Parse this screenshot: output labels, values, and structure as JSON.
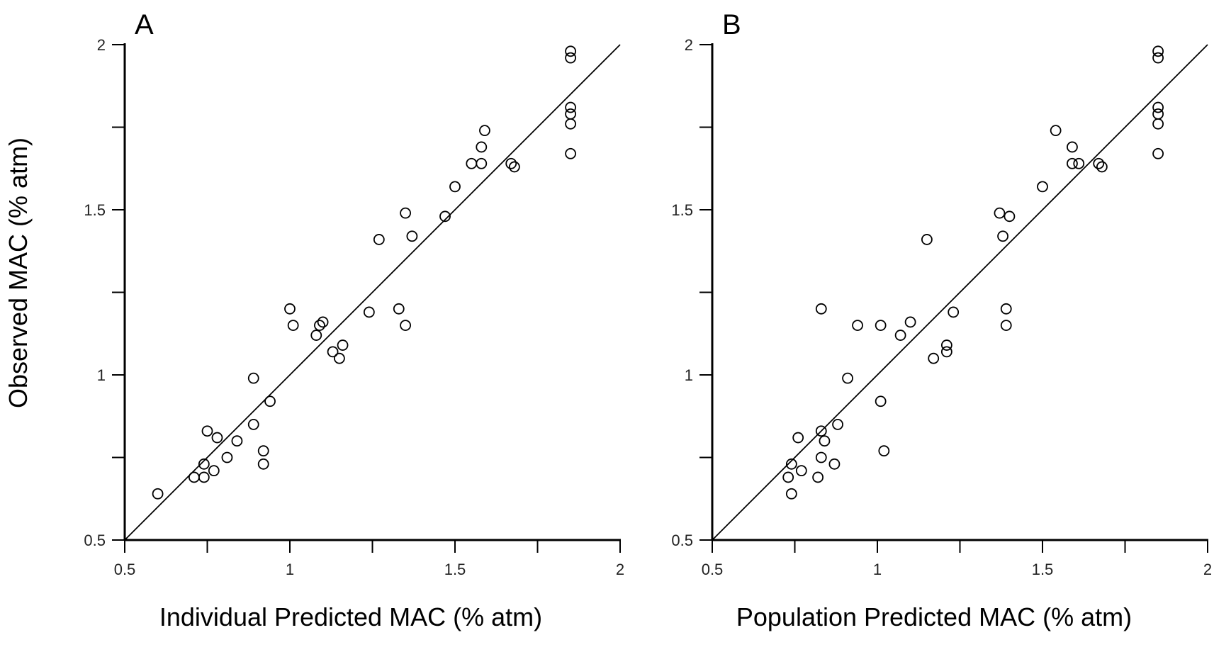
{
  "figure": {
    "ylabel": "Observed MAC (% atm)"
  },
  "chart_data": [
    {
      "type": "scatter",
      "panel_label": "A",
      "title": "",
      "xlabel": "Individual Predicted MAC (% atm)",
      "ylabel": "Observed MAC (% atm)",
      "xlim": [
        0.5,
        2
      ],
      "ylim": [
        0.5,
        2
      ],
      "major_ticks": [
        0.5,
        1,
        1.5,
        2
      ],
      "minor_ticks": [
        0.75,
        1.25,
        1.75
      ],
      "tick_labels": [
        "0.5",
        "1",
        "1.5",
        "2"
      ],
      "reference_line": "identity y = x",
      "grid": false,
      "points": [
        {
          "x": 0.6,
          "y": 0.64
        },
        {
          "x": 0.71,
          "y": 0.69
        },
        {
          "x": 0.74,
          "y": 0.69
        },
        {
          "x": 0.74,
          "y": 0.73
        },
        {
          "x": 0.75,
          "y": 0.83
        },
        {
          "x": 0.77,
          "y": 0.71
        },
        {
          "x": 0.78,
          "y": 0.81
        },
        {
          "x": 0.81,
          "y": 0.75
        },
        {
          "x": 0.84,
          "y": 0.8
        },
        {
          "x": 0.89,
          "y": 0.85
        },
        {
          "x": 0.89,
          "y": 0.99
        },
        {
          "x": 0.92,
          "y": 0.77
        },
        {
          "x": 0.92,
          "y": 0.73
        },
        {
          "x": 0.94,
          "y": 0.92
        },
        {
          "x": 1.0,
          "y": 1.2
        },
        {
          "x": 1.01,
          "y": 1.15
        },
        {
          "x": 1.08,
          "y": 1.12
        },
        {
          "x": 1.09,
          "y": 1.15
        },
        {
          "x": 1.1,
          "y": 1.16
        },
        {
          "x": 1.13,
          "y": 1.07
        },
        {
          "x": 1.15,
          "y": 1.05
        },
        {
          "x": 1.16,
          "y": 1.09
        },
        {
          "x": 1.24,
          "y": 1.19
        },
        {
          "x": 1.27,
          "y": 1.41
        },
        {
          "x": 1.33,
          "y": 1.2
        },
        {
          "x": 1.35,
          "y": 1.15
        },
        {
          "x": 1.35,
          "y": 1.49
        },
        {
          "x": 1.37,
          "y": 1.42
        },
        {
          "x": 1.47,
          "y": 1.48
        },
        {
          "x": 1.5,
          "y": 1.57
        },
        {
          "x": 1.55,
          "y": 1.64
        },
        {
          "x": 1.58,
          "y": 1.64
        },
        {
          "x": 1.58,
          "y": 1.69
        },
        {
          "x": 1.59,
          "y": 1.74
        },
        {
          "x": 1.67,
          "y": 1.64
        },
        {
          "x": 1.68,
          "y": 1.63
        },
        {
          "x": 1.85,
          "y": 1.67
        },
        {
          "x": 1.85,
          "y": 1.76
        },
        {
          "x": 1.85,
          "y": 1.79
        },
        {
          "x": 1.85,
          "y": 1.81
        },
        {
          "x": 1.85,
          "y": 1.96
        },
        {
          "x": 1.85,
          "y": 1.98
        }
      ]
    },
    {
      "type": "scatter",
      "panel_label": "B",
      "title": "",
      "xlabel": "Population Predicted MAC (% atm)",
      "ylabel": "",
      "xlim": [
        0.5,
        2
      ],
      "ylim": [
        0.5,
        2
      ],
      "major_ticks": [
        0.5,
        1,
        1.5,
        2
      ],
      "minor_ticks": [
        0.75,
        1.25,
        1.75
      ],
      "tick_labels": [
        "0.5",
        "1",
        "1.5",
        "2"
      ],
      "reference_line": "identity y = x",
      "grid": false,
      "points": [
        {
          "x": 0.73,
          "y": 0.69
        },
        {
          "x": 0.74,
          "y": 0.64
        },
        {
          "x": 0.74,
          "y": 0.73
        },
        {
          "x": 0.76,
          "y": 0.81
        },
        {
          "x": 0.77,
          "y": 0.71
        },
        {
          "x": 0.82,
          "y": 0.69
        },
        {
          "x": 0.83,
          "y": 0.75
        },
        {
          "x": 0.83,
          "y": 0.83
        },
        {
          "x": 0.84,
          "y": 0.8
        },
        {
          "x": 0.83,
          "y": 1.2
        },
        {
          "x": 0.87,
          "y": 0.73
        },
        {
          "x": 0.88,
          "y": 0.85
        },
        {
          "x": 0.91,
          "y": 0.99
        },
        {
          "x": 0.94,
          "y": 1.15
        },
        {
          "x": 1.01,
          "y": 0.92
        },
        {
          "x": 1.01,
          "y": 1.15
        },
        {
          "x": 1.02,
          "y": 0.77
        },
        {
          "x": 1.07,
          "y": 1.12
        },
        {
          "x": 1.1,
          "y": 1.16
        },
        {
          "x": 1.15,
          "y": 1.41
        },
        {
          "x": 1.17,
          "y": 1.05
        },
        {
          "x": 1.21,
          "y": 1.07
        },
        {
          "x": 1.21,
          "y": 1.09
        },
        {
          "x": 1.23,
          "y": 1.19
        },
        {
          "x": 1.37,
          "y": 1.49
        },
        {
          "x": 1.38,
          "y": 1.42
        },
        {
          "x": 1.39,
          "y": 1.2
        },
        {
          "x": 1.39,
          "y": 1.15
        },
        {
          "x": 1.4,
          "y": 1.48
        },
        {
          "x": 1.5,
          "y": 1.57
        },
        {
          "x": 1.54,
          "y": 1.74
        },
        {
          "x": 1.59,
          "y": 1.64
        },
        {
          "x": 1.59,
          "y": 1.69
        },
        {
          "x": 1.61,
          "y": 1.64
        },
        {
          "x": 1.67,
          "y": 1.64
        },
        {
          "x": 1.68,
          "y": 1.63
        },
        {
          "x": 1.85,
          "y": 1.67
        },
        {
          "x": 1.85,
          "y": 1.76
        },
        {
          "x": 1.85,
          "y": 1.79
        },
        {
          "x": 1.85,
          "y": 1.81
        },
        {
          "x": 1.85,
          "y": 1.96
        },
        {
          "x": 1.85,
          "y": 1.98
        }
      ]
    }
  ]
}
